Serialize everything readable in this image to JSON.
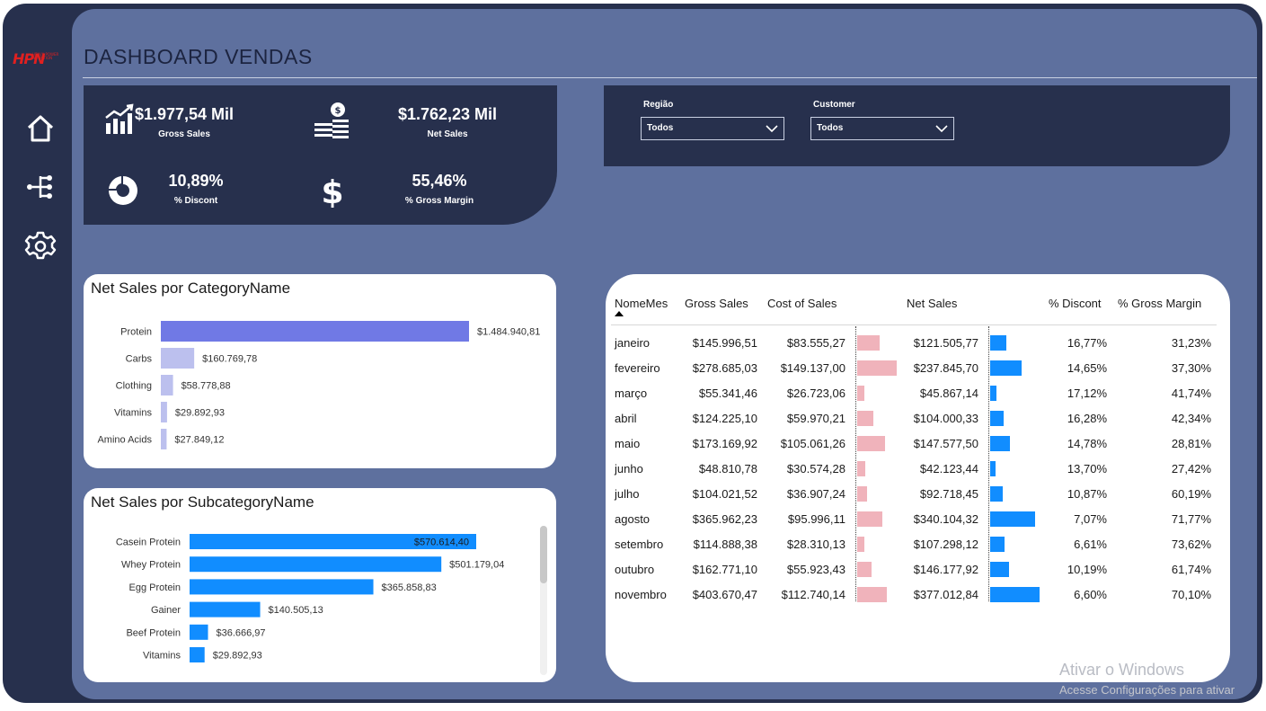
{
  "app": {
    "title": "DASHBOARD VENDAS",
    "logo_text": "HPN",
    "logo_tagline": "HEAVY POWER NUTRITION"
  },
  "colors": {
    "frame": "#27304d",
    "canvas": "#5e709e",
    "accent_red": "#e02020",
    "bar_primary": "#7079e5",
    "bar_light": "#bcc0ee",
    "bar_blue": "#118dff",
    "bar_pink": "#f0b3bb"
  },
  "sidebar": {
    "items": [
      {
        "icon": "home-icon"
      },
      {
        "icon": "hierarchy-icon"
      },
      {
        "icon": "gear-icon"
      }
    ]
  },
  "kpis": {
    "gross_sales": {
      "value": "$1.977,54 Mil",
      "label": "Gross Sales",
      "icon": "growth-chart-icon"
    },
    "net_sales": {
      "value": "$1.762,23 Mil",
      "label": "Net Sales",
      "icon": "money-stack-icon"
    },
    "discount": {
      "value": "10,89%",
      "label": "% Discont",
      "icon": "donut-chart-icon"
    },
    "gross_margin": {
      "value": "55,46%",
      "label": "% Gross Margin",
      "icon": "dollar-icon"
    }
  },
  "filters": {
    "regiao": {
      "label": "Região",
      "value": "Todos"
    },
    "customer": {
      "label": "Customer",
      "value": "Todos"
    }
  },
  "chart_data": [
    {
      "type": "bar",
      "orientation": "horizontal",
      "title": "Net Sales por CategoryName",
      "categories": [
        "Protein",
        "Carbs",
        "Clothing",
        "Vitamins",
        "Amino Acids"
      ],
      "values": [
        1484940.81,
        160769.78,
        58778.88,
        29892.93,
        27849.12
      ],
      "labels": [
        "$1.484.940,81",
        "$160.769,78",
        "$58.778,88",
        "$29.892,93",
        "$27.849,12"
      ]
    },
    {
      "type": "bar",
      "orientation": "horizontal",
      "title": "Net Sales por SubcategoryName",
      "categories": [
        "Casein Protein",
        "Whey Protein",
        "Egg Protein",
        "Gainer",
        "Beef Protein",
        "Vitamins"
      ],
      "values": [
        570614.4,
        501179.04,
        365858.83,
        140505.13,
        36666.97,
        29892.93
      ],
      "labels": [
        "$570.614,40",
        "$501.179,04",
        "$365.858,83",
        "$140.505,13",
        "$36.666,97",
        "$29.892,93"
      ]
    }
  ],
  "table": {
    "headers": {
      "month": "NomeMes",
      "gross": "Gross Sales",
      "cost": "Cost of Sales",
      "net": "Net Sales",
      "discount": "% Discont",
      "margin": "% Gross Margin"
    },
    "sort_column": "NomeMes",
    "rows": [
      {
        "month": "janeiro",
        "gross": "$145.996,51",
        "cost": "$83.555,27",
        "cost_val": 83555.27,
        "net": "$121.505,77",
        "net_val": 121505.77,
        "discount": "16,77%",
        "margin": "31,23%"
      },
      {
        "month": "fevereiro",
        "gross": "$278.685,03",
        "cost": "$149.137,00",
        "cost_val": 149137.0,
        "net": "$237.845,70",
        "net_val": 237845.7,
        "discount": "14,65%",
        "margin": "37,30%"
      },
      {
        "month": "março",
        "gross": "$55.341,46",
        "cost": "$26.723,06",
        "cost_val": 26723.06,
        "net": "$45.867,14",
        "net_val": 45867.14,
        "discount": "17,12%",
        "margin": "41,74%"
      },
      {
        "month": "abril",
        "gross": "$124.225,10",
        "cost": "$59.970,21",
        "cost_val": 59970.21,
        "net": "$104.000,33",
        "net_val": 104000.33,
        "discount": "16,28%",
        "margin": "42,34%"
      },
      {
        "month": "maio",
        "gross": "$173.169,92",
        "cost": "$105.061,26",
        "cost_val": 105061.26,
        "net": "$147.577,50",
        "net_val": 147577.5,
        "discount": "14,78%",
        "margin": "28,81%"
      },
      {
        "month": "junho",
        "gross": "$48.810,78",
        "cost": "$30.574,28",
        "cost_val": 30574.28,
        "net": "$42.123,44",
        "net_val": 42123.44,
        "discount": "13,70%",
        "margin": "27,42%"
      },
      {
        "month": "julho",
        "gross": "$104.021,52",
        "cost": "$36.907,24",
        "cost_val": 36907.24,
        "net": "$92.718,45",
        "net_val": 92718.45,
        "discount": "10,87%",
        "margin": "60,19%"
      },
      {
        "month": "agosto",
        "gross": "$365.962,23",
        "cost": "$95.996,11",
        "cost_val": 95996.11,
        "net": "$340.104,32",
        "net_val": 340104.32,
        "discount": "7,07%",
        "margin": "71,77%"
      },
      {
        "month": "setembro",
        "gross": "$114.888,38",
        "cost": "$28.310,13",
        "cost_val": 28310.13,
        "net": "$107.298,12",
        "net_val": 107298.12,
        "discount": "6,61%",
        "margin": "73,62%"
      },
      {
        "month": "outubro",
        "gross": "$162.771,10",
        "cost": "$55.923,43",
        "cost_val": 55923.43,
        "net": "$146.177,92",
        "net_val": 146177.92,
        "discount": "10,19%",
        "margin": "61,74%"
      },
      {
        "month": "novembro",
        "gross": "$403.670,47",
        "cost": "$112.740,14",
        "cost_val": 112740.14,
        "net": "$377.012,84",
        "net_val": 377012.84,
        "discount": "6,60%",
        "margin": "70,10%"
      }
    ]
  },
  "watermark": {
    "line1": "Ativar o Windows",
    "line2": "Acesse Configurações para ativar"
  }
}
